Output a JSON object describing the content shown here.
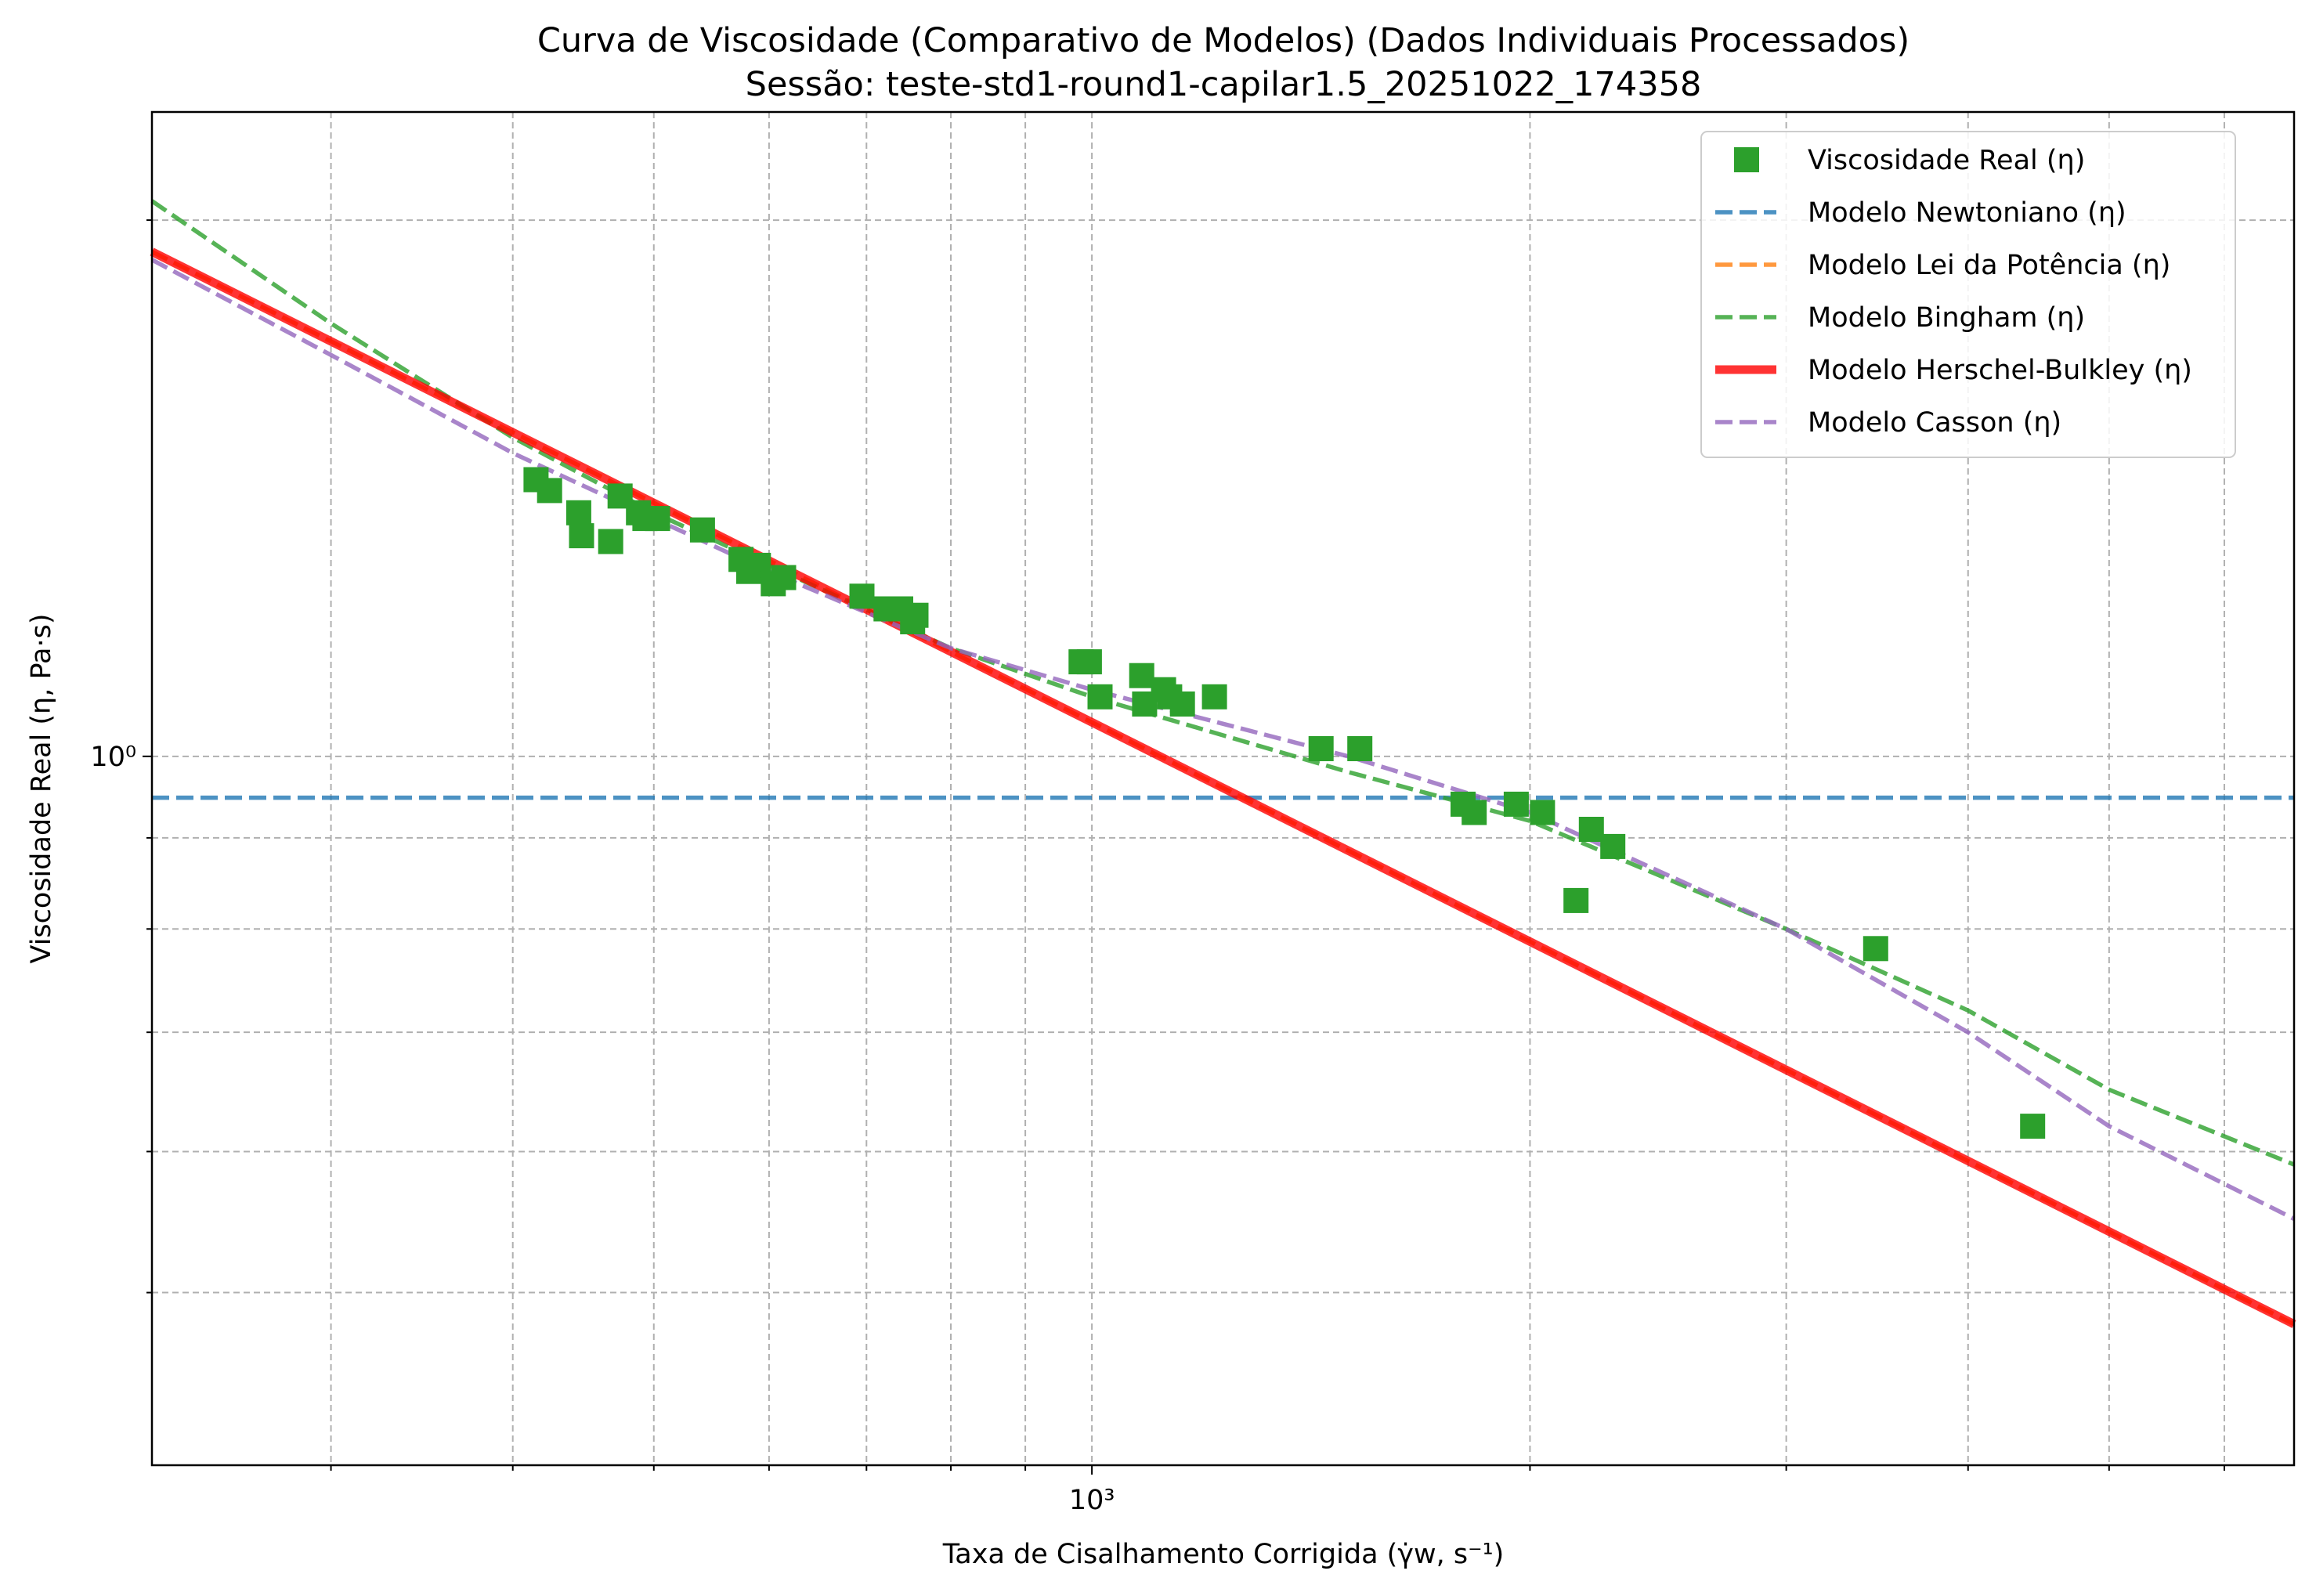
{
  "chart_data": {
    "type": "scatter",
    "title": "Curva de Viscosidade (Comparativo de Modelos) (Dados Individuais Processados)",
    "subtitle": "Sessão: teste-std1-round1-capilar1.5_20251022_174358",
    "xlabel": "Taxa de Cisalhamento Corrigida (γ̇w, s⁻¹)",
    "ylabel": "Viscosidade Real (η, Pa·s)",
    "x_scale": "log",
    "y_scale": "log",
    "xlim": [
      226,
      6700
    ],
    "ylim": [
      0.4,
      2.3
    ],
    "x_ticks": [
      {
        "value": 1000,
        "label": "10³"
      }
    ],
    "y_ticks": [
      {
        "value": 1.0,
        "label": "10⁰"
      }
    ],
    "x_minor_ticks": [
      300,
      400,
      500,
      600,
      700,
      800,
      900,
      2000,
      3000,
      4000,
      5000,
      6000
    ],
    "y_minor_ticks": [
      0.5,
      0.6,
      0.7,
      0.8,
      0.9,
      2.0
    ],
    "grid": true,
    "legend_position": "top-right",
    "series": [
      {
        "name": "Viscosidade Real (η)",
        "kind": "scatter",
        "color": "#2ca02c",
        "marker": "square",
        "points": [
          [
            415,
            1.43
          ],
          [
            424,
            1.41
          ],
          [
            444,
            1.37
          ],
          [
            446,
            1.33
          ],
          [
            467,
            1.32
          ],
          [
            474,
            1.4
          ],
          [
            488,
            1.37
          ],
          [
            493,
            1.36
          ],
          [
            503,
            1.36
          ],
          [
            540,
            1.34
          ],
          [
            574,
            1.29
          ],
          [
            581,
            1.27
          ],
          [
            590,
            1.28
          ],
          [
            604,
            1.25
          ],
          [
            614,
            1.26
          ],
          [
            695,
            1.23
          ],
          [
            722,
            1.21
          ],
          [
            739,
            1.21
          ],
          [
            753,
            1.19
          ],
          [
            757,
            1.2
          ],
          [
            983,
            1.13
          ],
          [
            996,
            1.13
          ],
          [
            1013,
            1.08
          ],
          [
            1082,
            1.11
          ],
          [
            1087,
            1.07
          ],
          [
            1120,
            1.09
          ],
          [
            1131,
            1.08
          ],
          [
            1154,
            1.07
          ],
          [
            1214,
            1.08
          ],
          [
            1437,
            1.01
          ],
          [
            1528,
            1.01
          ],
          [
            1799,
            0.94
          ],
          [
            1831,
            0.93
          ],
          [
            1957,
            0.94
          ],
          [
            2040,
            0.93
          ],
          [
            2151,
            0.83
          ],
          [
            2204,
            0.91
          ],
          [
            2280,
            0.89
          ],
          [
            3456,
            0.78
          ],
          [
            4430,
            0.62
          ]
        ]
      },
      {
        "name": "Modelo Newtoniano (η)",
        "kind": "line",
        "color": "#1f77b4",
        "dash": "dashed",
        "points": [
          [
            226,
            0.948
          ],
          [
            6700,
            0.948
          ]
        ]
      },
      {
        "name": "Modelo Lei da Potência (η)",
        "kind": "line",
        "color": "#ff7f0e",
        "dash": "dashed",
        "points": [
          [
            226,
            1.92
          ],
          [
            6700,
            0.48
          ]
        ]
      },
      {
        "name": "Modelo Bingham (η)",
        "kind": "line",
        "color": "#2ca02c",
        "dash": "dashed",
        "points": [
          [
            226,
            2.05
          ],
          [
            300,
            1.75
          ],
          [
            400,
            1.51
          ],
          [
            500,
            1.37
          ],
          [
            600,
            1.28
          ],
          [
            800,
            1.15
          ],
          [
            1000,
            1.08
          ],
          [
            1500,
            0.98
          ],
          [
            2000,
            0.92
          ],
          [
            3000,
            0.8
          ],
          [
            4000,
            0.72
          ],
          [
            5000,
            0.65
          ],
          [
            6700,
            0.59
          ]
        ]
      },
      {
        "name": "Modelo Herschel-Bulkley (η)",
        "kind": "line",
        "color": "#ff0000",
        "dash": "solid",
        "points": [
          [
            226,
            1.92
          ],
          [
            6700,
            0.48
          ]
        ]
      },
      {
        "name": "Modelo Casson (η)",
        "kind": "line",
        "color": "#9467bd",
        "dash": "dashed",
        "points": [
          [
            226,
            1.9
          ],
          [
            300,
            1.68
          ],
          [
            400,
            1.48
          ],
          [
            500,
            1.36
          ],
          [
            600,
            1.27
          ],
          [
            800,
            1.15
          ],
          [
            1000,
            1.09
          ],
          [
            1500,
            1.0
          ],
          [
            2000,
            0.93
          ],
          [
            3000,
            0.8
          ],
          [
            4000,
            0.7
          ],
          [
            5000,
            0.62
          ],
          [
            6700,
            0.55
          ]
        ]
      }
    ]
  }
}
